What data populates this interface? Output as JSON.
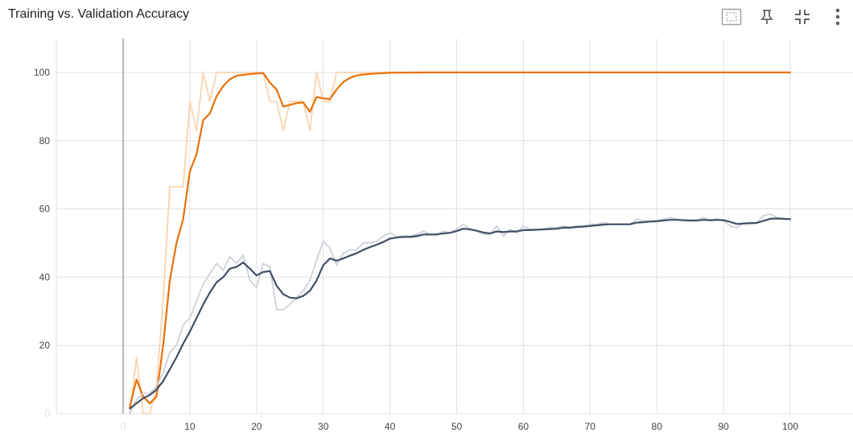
{
  "chart_title": "Training vs. Validation Accuracy",
  "toolbar": {
    "icons": [
      "fit-domain-icon",
      "pin-icon",
      "collapse-icon",
      "more-vert-icon"
    ]
  },
  "colors": {
    "accuracy_smoothed": "#e8710a",
    "accuracy_raw": "#fbd3b0",
    "val_smoothed": "#425066",
    "val_raw": "#cdd1da",
    "grid": "#e0e0e0",
    "axis": "#999999"
  },
  "chart_data": {
    "type": "line",
    "title": "Training vs. Validation Accuracy",
    "xlabel": "",
    "ylabel": "",
    "xlim": [
      -10,
      110
    ],
    "ylim": [
      0,
      110
    ],
    "x_ticks": [
      0,
      10,
      20,
      30,
      40,
      50,
      60,
      70,
      80,
      90,
      100
    ],
    "y_ticks": [
      0,
      20,
      40,
      60,
      80,
      100
    ],
    "grid": true,
    "series": [
      {
        "key": "acc_raw",
        "color": "#fbd3b0",
        "points": [
          [
            1,
            0
          ],
          [
            2,
            16.5
          ],
          [
            3,
            0
          ],
          [
            4,
            0
          ],
          [
            5,
            8
          ],
          [
            6,
            33
          ],
          [
            7,
            66.5
          ],
          [
            8,
            66.5
          ],
          [
            9,
            66.5
          ],
          [
            10,
            91.5
          ],
          [
            11,
            83
          ],
          [
            12,
            100
          ],
          [
            13,
            91.5
          ],
          [
            14,
            100
          ],
          [
            15,
            100
          ],
          [
            16,
            100
          ],
          [
            17,
            100
          ],
          [
            18,
            100
          ],
          [
            19,
            100
          ],
          [
            20,
            100
          ],
          [
            21,
            100
          ],
          [
            22,
            91.5
          ],
          [
            23,
            91.5
          ],
          [
            24,
            83
          ],
          [
            25,
            91.5
          ],
          [
            26,
            91.5
          ],
          [
            27,
            91.5
          ],
          [
            28,
            83
          ],
          [
            29,
            100
          ],
          [
            30,
            91.5
          ],
          [
            31,
            91.5
          ],
          [
            32,
            100
          ],
          [
            33,
            100
          ],
          [
            34,
            100
          ],
          [
            35,
            100
          ],
          [
            40,
            100
          ],
          [
            50,
            100
          ],
          [
            60,
            100
          ],
          [
            70,
            100
          ],
          [
            80,
            100
          ],
          [
            90,
            100
          ],
          [
            100,
            100
          ]
        ]
      },
      {
        "key": "acc_smooth",
        "color": "#e8710a",
        "points": [
          [
            1,
            2
          ],
          [
            2,
            10
          ],
          [
            3,
            5
          ],
          [
            4,
            3
          ],
          [
            5,
            5
          ],
          [
            6,
            20
          ],
          [
            7,
            39
          ],
          [
            8,
            50
          ],
          [
            9,
            57
          ],
          [
            10,
            71
          ],
          [
            11,
            76
          ],
          [
            12,
            86
          ],
          [
            13,
            88
          ],
          [
            14,
            93
          ],
          [
            15,
            96
          ],
          [
            16,
            98
          ],
          [
            17,
            99
          ],
          [
            18,
            99.3
          ],
          [
            19,
            99.5
          ],
          [
            20,
            99.7
          ],
          [
            21,
            99.8
          ],
          [
            22,
            97
          ],
          [
            23,
            95
          ],
          [
            24,
            90
          ],
          [
            25,
            90.5
          ],
          [
            26,
            91
          ],
          [
            27,
            91.2
          ],
          [
            28,
            88.5
          ],
          [
            29,
            92.8
          ],
          [
            30,
            92.4
          ],
          [
            31,
            92.2
          ],
          [
            32,
            95
          ],
          [
            33,
            97.2
          ],
          [
            34,
            98.4
          ],
          [
            35,
            99.1
          ],
          [
            36,
            99.4
          ],
          [
            38,
            99.7
          ],
          [
            40,
            99.9
          ],
          [
            45,
            100
          ],
          [
            50,
            100
          ],
          [
            60,
            100
          ],
          [
            70,
            100
          ],
          [
            80,
            100
          ],
          [
            90,
            100
          ],
          [
            100,
            100
          ]
        ]
      },
      {
        "key": "val_raw",
        "color": "#cdd1da",
        "points": [
          [
            1,
            0
          ],
          [
            2,
            4
          ],
          [
            3,
            6
          ],
          [
            4,
            6
          ],
          [
            5,
            8
          ],
          [
            6,
            12
          ],
          [
            7,
            18
          ],
          [
            8,
            20
          ],
          [
            9,
            26
          ],
          [
            10,
            28
          ],
          [
            11,
            33
          ],
          [
            12,
            38
          ],
          [
            13,
            41
          ],
          [
            14,
            44
          ],
          [
            15,
            42
          ],
          [
            16,
            46
          ],
          [
            17,
            44
          ],
          [
            18,
            46.5
          ],
          [
            19,
            39
          ],
          [
            20,
            37
          ],
          [
            21,
            44
          ],
          [
            22,
            43
          ],
          [
            23,
            30.5
          ],
          [
            24,
            30.5
          ],
          [
            25,
            32
          ],
          [
            26,
            34
          ],
          [
            27,
            36
          ],
          [
            28,
            39
          ],
          [
            29,
            45
          ],
          [
            30,
            50.5
          ],
          [
            31,
            48.5
          ],
          [
            32,
            43.5
          ],
          [
            33,
            47
          ],
          [
            34,
            48
          ],
          [
            35,
            48
          ],
          [
            36,
            50
          ],
          [
            37,
            50
          ],
          [
            38,
            50.5
          ],
          [
            39,
            52
          ],
          [
            40,
            53
          ],
          [
            41,
            52
          ],
          [
            42,
            52
          ],
          [
            43,
            52
          ],
          [
            44,
            52.5
          ],
          [
            45,
            53.5
          ],
          [
            46,
            52.5
          ],
          [
            47,
            52.5
          ],
          [
            48,
            53.5
          ],
          [
            49,
            53
          ],
          [
            50,
            54
          ],
          [
            51,
            55.5
          ],
          [
            52,
            54
          ],
          [
            53,
            53.5
          ],
          [
            54,
            52.5
          ],
          [
            55,
            52.5
          ],
          [
            56,
            55
          ],
          [
            57,
            52
          ],
          [
            58,
            54
          ],
          [
            59,
            53
          ],
          [
            60,
            55
          ],
          [
            61,
            54
          ],
          [
            62,
            54
          ],
          [
            63,
            54
          ],
          [
            64,
            54.5
          ],
          [
            65,
            54.5
          ],
          [
            66,
            55
          ],
          [
            67,
            54.5
          ],
          [
            68,
            55
          ],
          [
            69,
            55
          ],
          [
            70,
            55.5
          ],
          [
            71,
            55.5
          ],
          [
            72,
            56
          ],
          [
            73,
            55.5
          ],
          [
            74,
            55.5
          ],
          [
            75,
            55.5
          ],
          [
            76,
            55.5
          ],
          [
            77,
            57
          ],
          [
            78,
            56.5
          ],
          [
            79,
            56.5
          ],
          [
            80,
            56.5
          ],
          [
            81,
            57
          ],
          [
            82,
            57.5
          ],
          [
            83,
            57
          ],
          [
            84,
            56.5
          ],
          [
            85,
            56.5
          ],
          [
            86,
            56.5
          ],
          [
            87,
            57.5
          ],
          [
            88,
            56.5
          ],
          [
            89,
            57
          ],
          [
            90,
            56.5
          ],
          [
            91,
            55
          ],
          [
            92,
            54.5
          ],
          [
            93,
            56
          ],
          [
            94,
            56
          ],
          [
            95,
            56
          ],
          [
            96,
            58
          ],
          [
            97,
            58.5
          ],
          [
            98,
            57.5
          ],
          [
            99,
            57
          ],
          [
            100,
            57
          ]
        ]
      },
      {
        "key": "val_smooth",
        "color": "#425066",
        "points": [
          [
            1,
            1.5
          ],
          [
            2,
            3
          ],
          [
            3,
            4.5
          ],
          [
            4,
            5.5
          ],
          [
            5,
            7
          ],
          [
            6,
            9.5
          ],
          [
            7,
            13
          ],
          [
            8,
            16.5
          ],
          [
            9,
            20.5
          ],
          [
            10,
            24
          ],
          [
            11,
            28
          ],
          [
            12,
            32
          ],
          [
            13,
            35.5
          ],
          [
            14,
            38.5
          ],
          [
            15,
            40
          ],
          [
            16,
            42.5
          ],
          [
            17,
            43
          ],
          [
            18,
            44.3
          ],
          [
            19,
            42.5
          ],
          [
            20,
            40.5
          ],
          [
            21,
            41.5
          ],
          [
            22,
            41.8
          ],
          [
            23,
            37.5
          ],
          [
            24,
            35
          ],
          [
            25,
            34
          ],
          [
            26,
            33.8
          ],
          [
            27,
            34.5
          ],
          [
            28,
            36
          ],
          [
            29,
            39
          ],
          [
            30,
            43.5
          ],
          [
            31,
            45.5
          ],
          [
            32,
            44.8
          ],
          [
            33,
            45.5
          ],
          [
            34,
            46.3
          ],
          [
            35,
            47
          ],
          [
            36,
            48
          ],
          [
            37,
            48.8
          ],
          [
            38,
            49.5
          ],
          [
            39,
            50.3
          ],
          [
            40,
            51.3
          ],
          [
            41,
            51.6
          ],
          [
            42,
            51.8
          ],
          [
            43,
            51.8
          ],
          [
            44,
            52
          ],
          [
            45,
            52.5
          ],
          [
            46,
            52.5
          ],
          [
            47,
            52.5
          ],
          [
            48,
            52.8
          ],
          [
            49,
            53
          ],
          [
            50,
            53.5
          ],
          [
            51,
            54.2
          ],
          [
            52,
            54
          ],
          [
            53,
            53.6
          ],
          [
            54,
            53.1
          ],
          [
            55,
            52.8
          ],
          [
            56,
            53.4
          ],
          [
            57,
            53.2
          ],
          [
            58,
            53.4
          ],
          [
            59,
            53.4
          ],
          [
            60,
            53.8
          ],
          [
            61,
            53.8
          ],
          [
            62,
            53.9
          ],
          [
            63,
            54
          ],
          [
            64,
            54.1
          ],
          [
            65,
            54.2
          ],
          [
            66,
            54.5
          ],
          [
            67,
            54.5
          ],
          [
            68,
            54.7
          ],
          [
            69,
            54.8
          ],
          [
            70,
            55
          ],
          [
            71,
            55.2
          ],
          [
            72,
            55.4
          ],
          [
            73,
            55.5
          ],
          [
            74,
            55.5
          ],
          [
            75,
            55.5
          ],
          [
            76,
            55.5
          ],
          [
            77,
            56
          ],
          [
            78,
            56.1
          ],
          [
            79,
            56.3
          ],
          [
            80,
            56.4
          ],
          [
            81,
            56.6
          ],
          [
            82,
            56.8
          ],
          [
            83,
            56.8
          ],
          [
            84,
            56.7
          ],
          [
            85,
            56.6
          ],
          [
            86,
            56.6
          ],
          [
            87,
            56.8
          ],
          [
            88,
            56.7
          ],
          [
            89,
            56.8
          ],
          [
            90,
            56.7
          ],
          [
            91,
            56.2
          ],
          [
            92,
            55.6
          ],
          [
            93,
            55.7
          ],
          [
            94,
            55.8
          ],
          [
            95,
            55.9
          ],
          [
            96,
            56.5
          ],
          [
            97,
            57.1
          ],
          [
            98,
            57.2
          ],
          [
            99,
            57.1
          ],
          [
            100,
            57
          ]
        ]
      }
    ]
  }
}
